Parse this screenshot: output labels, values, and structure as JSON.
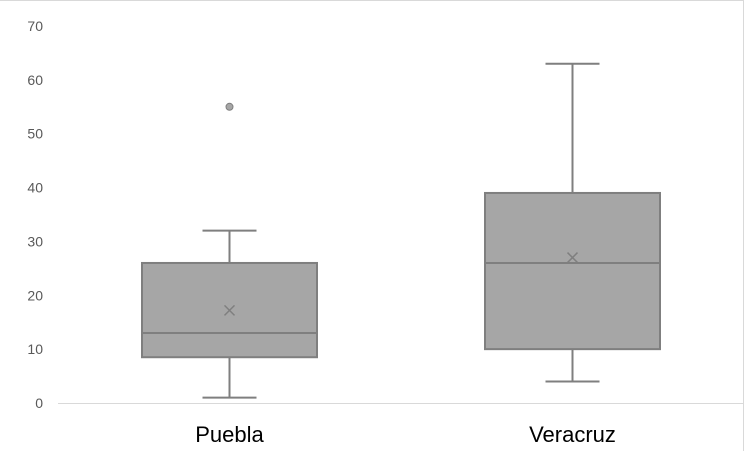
{
  "chart_data": {
    "type": "box",
    "categories": [
      "Puebla",
      "Veracruz"
    ],
    "ylim": [
      0,
      70
    ],
    "yticks": [
      "0",
      "10",
      "20",
      "30",
      "40",
      "50",
      "60",
      "70"
    ],
    "grid": false,
    "boxes": [
      {
        "category": "Puebla",
        "min": 1,
        "q1": 8.5,
        "median": 13,
        "q3": 26,
        "max": 32,
        "mean": 17.2,
        "outliers": [
          55
        ]
      },
      {
        "category": "Veracruz",
        "min": 4,
        "q1": 10,
        "median": 26,
        "q3": 39,
        "max": 63,
        "mean": 27,
        "outliers": []
      }
    ],
    "colors": {
      "box_fill": "#a6a6a6",
      "box_stroke": "#7f7f7f",
      "axis": "#d9d9d9"
    }
  }
}
